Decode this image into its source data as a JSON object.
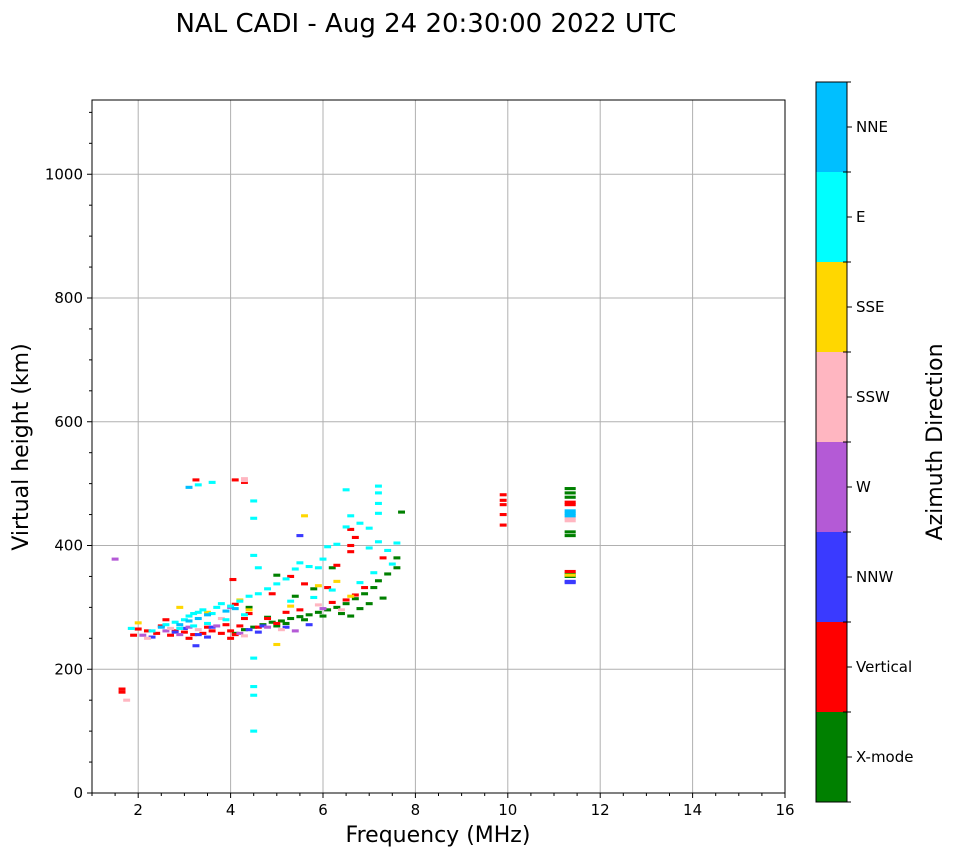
{
  "chart_data": {
    "type": "scatter",
    "title": "NAL CADI - Aug 24 20:30:00 2022 UTC",
    "xlabel": "Frequency (MHz)",
    "ylabel": "Virtual height (km)",
    "xlim": [
      1,
      16
    ],
    "ylim": [
      0,
      1120
    ],
    "xticks": [
      2,
      4,
      6,
      8,
      10,
      12,
      14,
      16
    ],
    "yticks": [
      0,
      200,
      400,
      600,
      800,
      1000
    ],
    "grid": true,
    "colorbar": {
      "label": "Azimuth Direction",
      "categories": [
        "X-mode",
        "Vertical",
        "NNW",
        "W",
        "SSW",
        "SSE",
        "E",
        "NNE"
      ],
      "colors": [
        "#008000",
        "#ff0000",
        "#3a3aff",
        "#b45ad6",
        "#ffb6c1",
        "#ffd700",
        "#00ffff",
        "#00bfff"
      ]
    },
    "point_size": {
      "freq": 0.15,
      "height": 5
    },
    "series": [
      {
        "name": "X-mode",
        "points": [
          [
            4.1,
            258
          ],
          [
            4.3,
            264
          ],
          [
            4.5,
            268
          ],
          [
            4.7,
            272
          ],
          [
            4.9,
            276
          ],
          [
            5.1,
            278
          ],
          [
            5.3,
            282
          ],
          [
            5.5,
            285
          ],
          [
            5.7,
            288
          ],
          [
            5.9,
            292
          ],
          [
            6.1,
            296
          ],
          [
            6.3,
            300
          ],
          [
            6.5,
            306
          ],
          [
            6.7,
            314
          ],
          [
            6.9,
            322
          ],
          [
            7.1,
            332
          ],
          [
            7.2,
            343
          ],
          [
            7.4,
            354
          ],
          [
            7.6,
            364
          ],
          [
            5.0,
            270
          ],
          [
            5.2,
            274
          ],
          [
            5.6,
            280
          ],
          [
            6.0,
            286
          ],
          [
            6.4,
            290
          ],
          [
            6.8,
            298
          ],
          [
            7.0,
            306
          ],
          [
            7.3,
            315
          ],
          [
            5.4,
            318
          ],
          [
            5.8,
            330
          ],
          [
            6.6,
            286
          ],
          [
            4.4,
            300
          ],
          [
            4.8,
            284
          ],
          [
            7.7,
            454
          ],
          [
            7.6,
            380
          ],
          [
            6.2,
            364
          ],
          [
            5.0,
            352
          ],
          [
            11.35,
            485
          ],
          [
            11.35,
            492
          ],
          [
            11.35,
            478
          ],
          [
            11.35,
            422
          ],
          [
            11.35,
            416
          ],
          [
            11.35,
            354
          ],
          [
            11.35,
            350
          ]
        ]
      },
      {
        "name": "Vertical",
        "points": [
          [
            1.65,
            168
          ],
          [
            1.65,
            163
          ],
          [
            1.9,
            255
          ],
          [
            2.0,
            265
          ],
          [
            2.2,
            262
          ],
          [
            2.4,
            258
          ],
          [
            2.5,
            270
          ],
          [
            2.6,
            280
          ],
          [
            2.8,
            262
          ],
          [
            3.0,
            260
          ],
          [
            3.2,
            256
          ],
          [
            3.4,
            258
          ],
          [
            3.5,
            268
          ],
          [
            3.6,
            262
          ],
          [
            3.8,
            258
          ],
          [
            3.9,
            272
          ],
          [
            4.0,
            262
          ],
          [
            4.0,
            250
          ],
          [
            4.1,
            256
          ],
          [
            4.2,
            270
          ],
          [
            4.4,
            290
          ],
          [
            4.6,
            268
          ],
          [
            4.8,
            282
          ],
          [
            5.0,
            274
          ],
          [
            4.1,
            305
          ],
          [
            4.3,
            282
          ],
          [
            4.05,
            345
          ],
          [
            4.3,
            502
          ],
          [
            4.1,
            506
          ],
          [
            3.25,
            506
          ],
          [
            5.3,
            350
          ],
          [
            5.6,
            338
          ],
          [
            6.1,
            332
          ],
          [
            6.2,
            308
          ],
          [
            6.5,
            312
          ],
          [
            6.7,
            320
          ],
          [
            6.9,
            332
          ],
          [
            6.6,
            400
          ],
          [
            6.7,
            413
          ],
          [
            6.6,
            390
          ],
          [
            6.3,
            368
          ],
          [
            6.6,
            426
          ],
          [
            7.3,
            380
          ],
          [
            4.9,
            322
          ],
          [
            5.2,
            292
          ],
          [
            5.5,
            296
          ],
          [
            2.7,
            255
          ],
          [
            3.1,
            250
          ],
          [
            9.9,
            482
          ],
          [
            9.9,
            473
          ],
          [
            9.9,
            466
          ],
          [
            9.9,
            450
          ],
          [
            9.9,
            433
          ],
          [
            11.35,
            470
          ],
          [
            11.35,
            466
          ],
          [
            11.35,
            358
          ]
        ]
      },
      {
        "name": "NNW",
        "points": [
          [
            2.3,
            252
          ],
          [
            2.8,
            260
          ],
          [
            3.3,
            256
          ],
          [
            3.6,
            268
          ],
          [
            4.4,
            264
          ],
          [
            4.7,
            270
          ],
          [
            5.2,
            268
          ],
          [
            3.5,
            252
          ],
          [
            3.0,
            266
          ],
          [
            5.5,
            416
          ],
          [
            3.25,
            238
          ],
          [
            4.6,
            260
          ],
          [
            5.7,
            272
          ],
          [
            11.35,
            342
          ],
          [
            11.35,
            340
          ]
        ]
      },
      {
        "name": "W",
        "points": [
          [
            1.5,
            378
          ],
          [
            2.1,
            255
          ],
          [
            2.6,
            262
          ],
          [
            3.1,
            268
          ],
          [
            4.2,
            258
          ],
          [
            4.8,
            268
          ],
          [
            5.4,
            262
          ],
          [
            3.7,
            270
          ],
          [
            2.9,
            256
          ],
          [
            4.0,
            300
          ],
          [
            6.0,
            298
          ]
        ]
      },
      {
        "name": "SSW",
        "points": [
          [
            1.75,
            150
          ],
          [
            2.2,
            250
          ],
          [
            2.7,
            266
          ],
          [
            3.3,
            264
          ],
          [
            4.3,
            254
          ],
          [
            5.1,
            264
          ],
          [
            4.3,
            505
          ],
          [
            4.3,
            508
          ],
          [
            5.9,
            304
          ],
          [
            6.4,
            296
          ],
          [
            3.8,
            282
          ],
          [
            11.35,
            444
          ],
          [
            11.35,
            440
          ]
        ]
      },
      {
        "name": "SSE",
        "points": [
          [
            2.0,
            275
          ],
          [
            2.9,
            300
          ],
          [
            3.5,
            292
          ],
          [
            4.4,
            296
          ],
          [
            5.0,
            240
          ],
          [
            5.6,
            448
          ],
          [
            5.9,
            335
          ],
          [
            6.3,
            342
          ],
          [
            5.3,
            302
          ],
          [
            4.2,
            312
          ],
          [
            6.6,
            318
          ],
          [
            11.35,
            352
          ]
        ]
      },
      {
        "name": "E",
        "points": [
          [
            1.85,
            266
          ],
          [
            2.3,
            262
          ],
          [
            2.6,
            272
          ],
          [
            2.8,
            276
          ],
          [
            3.0,
            280
          ],
          [
            3.1,
            286
          ],
          [
            3.2,
            290
          ],
          [
            3.3,
            292
          ],
          [
            3.4,
            296
          ],
          [
            3.6,
            290
          ],
          [
            3.7,
            300
          ],
          [
            3.8,
            306
          ],
          [
            4.0,
            302
          ],
          [
            4.2,
            310
          ],
          [
            4.4,
            318
          ],
          [
            4.6,
            322
          ],
          [
            4.8,
            330
          ],
          [
            5.0,
            338
          ],
          [
            5.2,
            346
          ],
          [
            5.4,
            362
          ],
          [
            5.5,
            372
          ],
          [
            5.7,
            366
          ],
          [
            5.9,
            364
          ],
          [
            6.0,
            378
          ],
          [
            6.1,
            398
          ],
          [
            6.3,
            402
          ],
          [
            6.5,
            430
          ],
          [
            6.6,
            448
          ],
          [
            6.8,
            436
          ],
          [
            7.0,
            428
          ],
          [
            7.2,
            496
          ],
          [
            7.2,
            485
          ],
          [
            7.2,
            468
          ],
          [
            7.2,
            452
          ],
          [
            7.2,
            406
          ],
          [
            7.0,
            396
          ],
          [
            7.4,
            392
          ],
          [
            7.6,
            404
          ],
          [
            6.5,
            490
          ],
          [
            4.5,
            472
          ],
          [
            4.5,
            444
          ],
          [
            4.5,
            384
          ],
          [
            4.6,
            364
          ],
          [
            4.5,
            218
          ],
          [
            4.5,
            172
          ],
          [
            4.5,
            158
          ],
          [
            4.5,
            100
          ],
          [
            3.3,
            498
          ],
          [
            3.6,
            502
          ],
          [
            2.9,
            266
          ],
          [
            3.2,
            270
          ],
          [
            3.5,
            274
          ],
          [
            3.9,
            280
          ],
          [
            4.3,
            288
          ],
          [
            5.3,
            310
          ],
          [
            5.8,
            316
          ],
          [
            6.2,
            328
          ],
          [
            6.8,
            340
          ],
          [
            7.1,
            356
          ],
          [
            7.5,
            370
          ]
        ]
      },
      {
        "name": "NNE",
        "points": [
          [
            2.5,
            268
          ],
          [
            2.9,
            272
          ],
          [
            3.1,
            278
          ],
          [
            3.3,
            282
          ],
          [
            3.5,
            288
          ],
          [
            3.9,
            294
          ],
          [
            4.1,
            298
          ],
          [
            3.1,
            494
          ],
          [
            11.35,
            456
          ],
          [
            11.35,
            452
          ],
          [
            11.35,
            448
          ]
        ]
      }
    ]
  }
}
